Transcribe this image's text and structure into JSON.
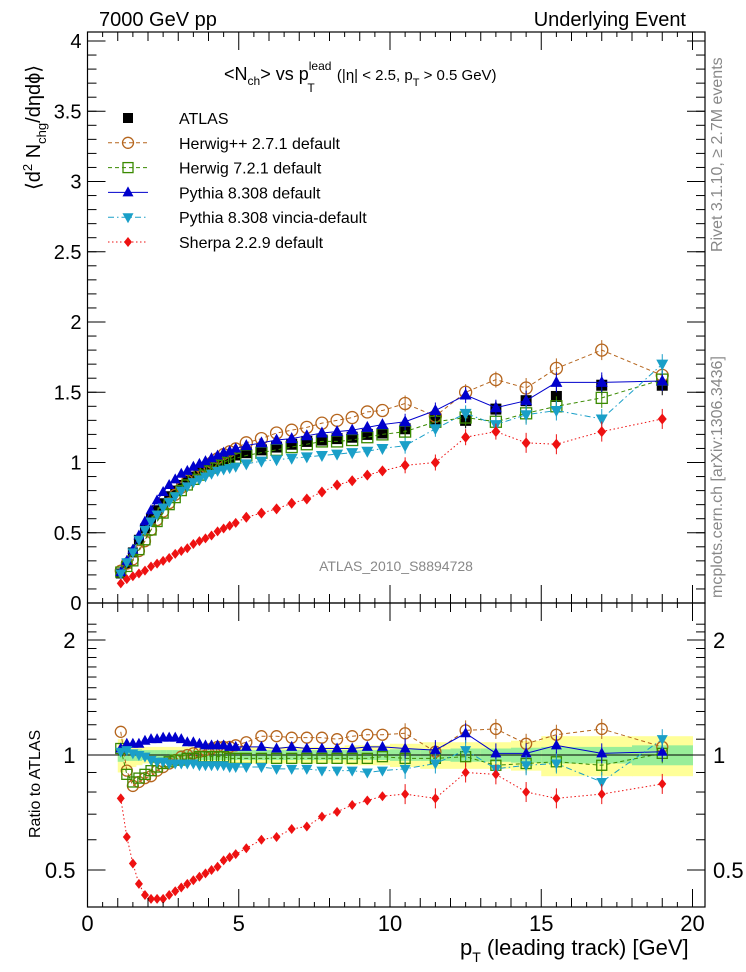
{
  "header": {
    "left": "7000 GeV pp",
    "right": "Underlying Event"
  },
  "side_labels": {
    "rivet": "Rivet 3.1.10, ≥ 2.7M events",
    "mcplots": "mcplots.cern.ch [arXiv:1306.3436]"
  },
  "watermark": "ATLAS_2010_S8894728",
  "chart_data": [
    {
      "type": "scatter",
      "panel": "main",
      "title": "<N_ch> vs p_T^lead (|η| < 2.5, p_T > 0.5 GeV)",
      "title_parts": {
        "main": "<N",
        "sub1": "ch",
        "mid": "> vs p",
        "sup": "lead",
        "sub2": "T",
        "rest": " (|η| < 2.5, p",
        "sub3": "T",
        "end": " > 0.5 GeV)"
      },
      "ylabel": "⟨d² N_chg/dηdϕ⟩",
      "ylabel_parts": {
        "pre": "⟨d",
        "sup": "2",
        "mid": " N",
        "sub": "chg",
        "post": "/dηdϕ⟩"
      },
      "xlabel": "",
      "xlim": [
        0,
        20.4
      ],
      "ylim": [
        0,
        4
      ],
      "yticks": [
        "0",
        "0.5",
        "1",
        "1.5",
        "2",
        "2.5",
        "3",
        "3.5",
        "4"
      ],
      "legend_position": "top-left",
      "x": [
        1.1,
        1.3,
        1.5,
        1.7,
        1.9,
        2.1,
        2.3,
        2.5,
        2.7,
        2.9,
        3.1,
        3.3,
        3.5,
        3.7,
        3.9,
        4.1,
        4.3,
        4.5,
        4.7,
        4.9,
        5.25,
        5.75,
        6.25,
        6.75,
        7.25,
        7.75,
        8.25,
        8.75,
        9.25,
        9.75,
        10.5,
        11.5,
        12.5,
        13.5,
        14.5,
        15.5,
        17,
        19
      ],
      "series": [
        {
          "name": "ATLAS",
          "marker": "square-filled",
          "color": "#000000",
          "line": "none",
          "values": [
            0.21,
            0.28,
            0.36,
            0.45,
            0.53,
            0.6,
            0.66,
            0.71,
            0.76,
            0.8,
            0.84,
            0.87,
            0.9,
            0.93,
            0.95,
            0.97,
            0.99,
            1.01,
            1.03,
            1.05,
            1.07,
            1.09,
            1.11,
            1.13,
            1.15,
            1.16,
            1.17,
            1.18,
            1.2,
            1.21,
            1.24,
            1.3,
            1.3,
            1.38,
            1.44,
            1.47,
            1.55,
            1.55
          ]
        },
        {
          "name": "Herwig++ 2.7.1 default",
          "marker": "circle-open",
          "color": "#b5651d",
          "line": "dashed",
          "values": [
            0.23,
            0.28,
            0.31,
            0.37,
            0.44,
            0.52,
            0.59,
            0.65,
            0.71,
            0.77,
            0.82,
            0.87,
            0.91,
            0.94,
            0.97,
            1.0,
            1.03,
            1.06,
            1.08,
            1.1,
            1.14,
            1.17,
            1.21,
            1.23,
            1.25,
            1.28,
            1.3,
            1.32,
            1.36,
            1.37,
            1.42,
            1.33,
            1.5,
            1.59,
            1.53,
            1.67,
            1.8,
            1.62
          ]
        },
        {
          "name": "Herwig 7.2.1 default",
          "marker": "square-open",
          "color": "#3a8a00",
          "line": "dashed",
          "values": [
            0.22,
            0.26,
            0.3,
            0.38,
            0.45,
            0.52,
            0.58,
            0.64,
            0.7,
            0.75,
            0.8,
            0.84,
            0.88,
            0.91,
            0.94,
            0.96,
            0.98,
            1.0,
            1.02,
            1.03,
            1.05,
            1.07,
            1.09,
            1.11,
            1.13,
            1.15,
            1.15,
            1.16,
            1.18,
            1.2,
            1.22,
            1.29,
            1.32,
            1.29,
            1.35,
            1.4,
            1.46,
            1.59
          ]
        },
        {
          "name": "Pythia 8.308 default",
          "marker": "triangle-up-filled",
          "color": "#0000cc",
          "line": "solid",
          "values": [
            0.22,
            0.3,
            0.38,
            0.48,
            0.58,
            0.66,
            0.73,
            0.79,
            0.84,
            0.88,
            0.92,
            0.94,
            0.97,
            0.99,
            1.01,
            1.03,
            1.05,
            1.07,
            1.08,
            1.1,
            1.12,
            1.14,
            1.16,
            1.17,
            1.19,
            1.21,
            1.22,
            1.23,
            1.25,
            1.27,
            1.29,
            1.37,
            1.48,
            1.39,
            1.44,
            1.57,
            1.57,
            1.58
          ]
        },
        {
          "name": "Pythia 8.308 vincia-default",
          "marker": "triangle-down-filled",
          "color": "#1a9fc8",
          "line": "dashdot",
          "values": [
            0.21,
            0.29,
            0.36,
            0.45,
            0.52,
            0.58,
            0.63,
            0.68,
            0.72,
            0.76,
            0.8,
            0.83,
            0.86,
            0.88,
            0.9,
            0.92,
            0.94,
            0.95,
            0.96,
            0.97,
            0.99,
            1.01,
            1.02,
            1.03,
            1.04,
            1.05,
            1.06,
            1.07,
            1.08,
            1.1,
            1.12,
            1.24,
            1.35,
            1.27,
            1.34,
            1.37,
            1.31,
            1.7
          ]
        },
        {
          "name": "Sherpa 2.2.9 default",
          "marker": "diamond-filled",
          "color": "#ee1111",
          "line": "dotted",
          "values": [
            0.14,
            0.17,
            0.19,
            0.21,
            0.23,
            0.26,
            0.28,
            0.3,
            0.32,
            0.35,
            0.37,
            0.39,
            0.42,
            0.44,
            0.46,
            0.48,
            0.51,
            0.53,
            0.55,
            0.57,
            0.61,
            0.64,
            0.67,
            0.71,
            0.74,
            0.79,
            0.84,
            0.87,
            0.91,
            0.94,
            0.98,
            1.0,
            1.18,
            1.22,
            1.14,
            1.13,
            1.22,
            1.31
          ]
        }
      ]
    },
    {
      "type": "scatter",
      "panel": "ratio",
      "ylabel": "Ratio to ATLAS",
      "xlabel": "p_T (leading track) [GeV]",
      "xlabel_parts": {
        "pre": "p",
        "sub": "T",
        "post": " (leading track) [GeV]"
      },
      "xlim": [
        0,
        20.4
      ],
      "ylim": [
        0.42,
        2.3
      ],
      "yscale": "log",
      "yticks": [
        "0.5",
        "1",
        "2"
      ],
      "xticks": [
        "0",
        "5",
        "10",
        "15",
        "20"
      ],
      "reference_band": {
        "x_edges": [
          1.0,
          1.2,
          1.4,
          1.6,
          1.8,
          2.0,
          2.2,
          2.4,
          2.6,
          2.8,
          3.0,
          3.2,
          3.4,
          3.6,
          3.8,
          4.0,
          4.2,
          4.4,
          4.6,
          4.8,
          5.0,
          5.5,
          6.0,
          6.5,
          7.0,
          7.5,
          8.0,
          8.5,
          9.0,
          9.5,
          10.0,
          11.0,
          12.0,
          13.0,
          14.0,
          15.0,
          16.0,
          18.0,
          20.0
        ],
        "inner_halfwidth": [
          0.04,
          0.035,
          0.035,
          0.035,
          0.03,
          0.03,
          0.03,
          0.03,
          0.03,
          0.03,
          0.03,
          0.03,
          0.03,
          0.03,
          0.03,
          0.03,
          0.03,
          0.03,
          0.03,
          0.03,
          0.03,
          0.03,
          0.03,
          0.03,
          0.03,
          0.03,
          0.03,
          0.03,
          0.03,
          0.03,
          0.035,
          0.035,
          0.04,
          0.04,
          0.045,
          0.05,
          0.05,
          0.06
        ],
        "outer_halfwidth": [
          0.1,
          0.08,
          0.07,
          0.06,
          0.05,
          0.05,
          0.05,
          0.05,
          0.05,
          0.05,
          0.05,
          0.05,
          0.05,
          0.05,
          0.05,
          0.05,
          0.05,
          0.05,
          0.05,
          0.05,
          0.05,
          0.05,
          0.05,
          0.05,
          0.05,
          0.05,
          0.05,
          0.06,
          0.06,
          0.06,
          0.07,
          0.08,
          0.08,
          0.08,
          0.09,
          0.12,
          0.12,
          0.12
        ],
        "inner_color": "#99ee99",
        "outer_color": "#ffff99"
      },
      "x": [
        1.1,
        1.3,
        1.5,
        1.7,
        1.9,
        2.1,
        2.3,
        2.5,
        2.7,
        2.9,
        3.1,
        3.3,
        3.5,
        3.7,
        3.9,
        4.1,
        4.3,
        4.5,
        4.7,
        4.9,
        5.25,
        5.75,
        6.25,
        6.75,
        7.25,
        7.75,
        8.25,
        8.75,
        9.25,
        9.75,
        10.5,
        11.5,
        12.5,
        13.5,
        14.5,
        15.5,
        17,
        19
      ],
      "series": [
        {
          "name": "Herwig++ 2.7.1 default",
          "marker": "circle-open",
          "color": "#b5651d",
          "line": "dashed",
          "values": [
            1.15,
            0.91,
            0.83,
            0.85,
            0.87,
            0.88,
            0.91,
            0.93,
            0.95,
            0.97,
            0.99,
            1.0,
            1.01,
            1.02,
            1.03,
            1.04,
            1.05,
            1.05,
            1.05,
            1.06,
            1.08,
            1.12,
            1.12,
            1.11,
            1.11,
            1.11,
            1.1,
            1.12,
            1.13,
            1.13,
            1.14,
            1.02,
            1.16,
            1.17,
            1.07,
            1.13,
            1.17,
            1.05
          ]
        },
        {
          "name": "Herwig 7.2.1 default",
          "marker": "square-open",
          "color": "#3a8a00",
          "line": "dashed",
          "values": [
            1.04,
            0.89,
            0.85,
            0.87,
            0.89,
            0.91,
            0.93,
            0.95,
            0.96,
            0.97,
            0.97,
            0.98,
            0.98,
            0.99,
            0.99,
            0.99,
            0.99,
            0.99,
            0.98,
            0.98,
            0.98,
            0.98,
            0.98,
            0.98,
            0.98,
            0.98,
            0.98,
            0.98,
            0.98,
            0.99,
            0.98,
            0.98,
            0.99,
            0.94,
            0.95,
            0.96,
            0.94,
            1.01
          ]
        },
        {
          "name": "Pythia 8.308 default",
          "marker": "triangle-up-filled",
          "color": "#0000cc",
          "line": "solid",
          "values": [
            1.04,
            1.07,
            1.07,
            1.07,
            1.09,
            1.1,
            1.1,
            1.11,
            1.11,
            1.11,
            1.1,
            1.08,
            1.08,
            1.07,
            1.06,
            1.06,
            1.06,
            1.06,
            1.05,
            1.05,
            1.05,
            1.05,
            1.04,
            1.05,
            1.04,
            1.04,
            1.04,
            1.04,
            1.05,
            1.05,
            1.04,
            1.03,
            1.14,
            1.01,
            1.01,
            1.06,
            1.01,
            1.02
          ]
        },
        {
          "name": "Pythia 8.308 vincia-default",
          "marker": "triangle-down-filled",
          "color": "#1a9fc8",
          "line": "dashdot",
          "values": [
            1.02,
            1.03,
            1.01,
            1.0,
            0.99,
            0.97,
            0.96,
            0.96,
            0.95,
            0.95,
            0.95,
            0.95,
            0.95,
            0.94,
            0.94,
            0.94,
            0.94,
            0.94,
            0.93,
            0.93,
            0.93,
            0.93,
            0.92,
            0.92,
            0.92,
            0.91,
            0.91,
            0.91,
            0.9,
            0.91,
            0.92,
            0.95,
            1.03,
            0.92,
            0.94,
            0.95,
            0.85,
            1.1
          ]
        },
        {
          "name": "Sherpa 2.2.9 default",
          "marker": "diamond-filled",
          "color": "#ee1111",
          "line": "dotted",
          "values": [
            0.77,
            0.61,
            0.52,
            0.46,
            0.43,
            0.42,
            0.42,
            0.42,
            0.43,
            0.44,
            0.45,
            0.46,
            0.47,
            0.48,
            0.49,
            0.5,
            0.51,
            0.53,
            0.54,
            0.55,
            0.57,
            0.6,
            0.61,
            0.64,
            0.65,
            0.69,
            0.71,
            0.74,
            0.76,
            0.78,
            0.79,
            0.77,
            0.9,
            0.89,
            0.8,
            0.77,
            0.79,
            0.84
          ]
        }
      ]
    }
  ]
}
